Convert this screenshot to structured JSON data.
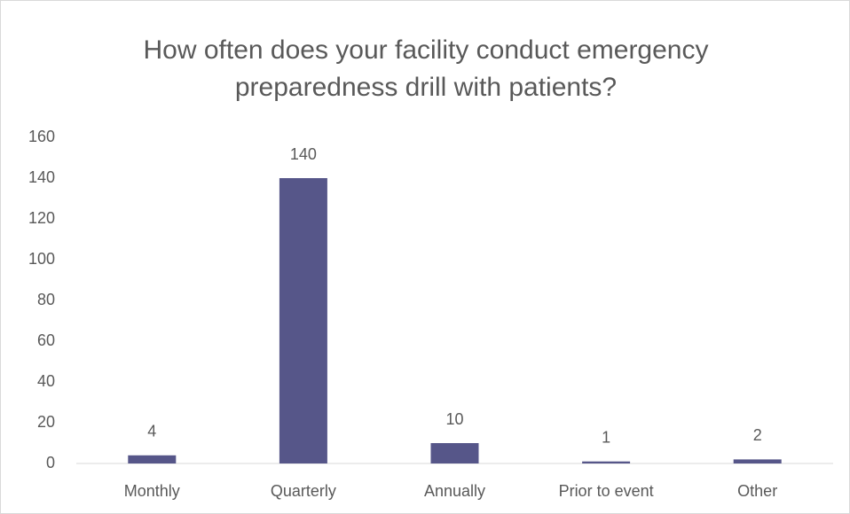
{
  "chart_data": {
    "type": "bar",
    "title": "How often does your facility conduct emergency preparedness drill with patients?",
    "categories": [
      "Monthly",
      "Quarterly",
      "Annually",
      "Prior to event",
      "Other"
    ],
    "values": [
      4,
      140,
      10,
      1,
      2
    ],
    "color": "#565689",
    "ylim": [
      0,
      160
    ],
    "yticks": [
      0,
      20,
      40,
      60,
      80,
      100,
      120,
      140,
      160
    ],
    "grid": false,
    "data_labels": true
  }
}
